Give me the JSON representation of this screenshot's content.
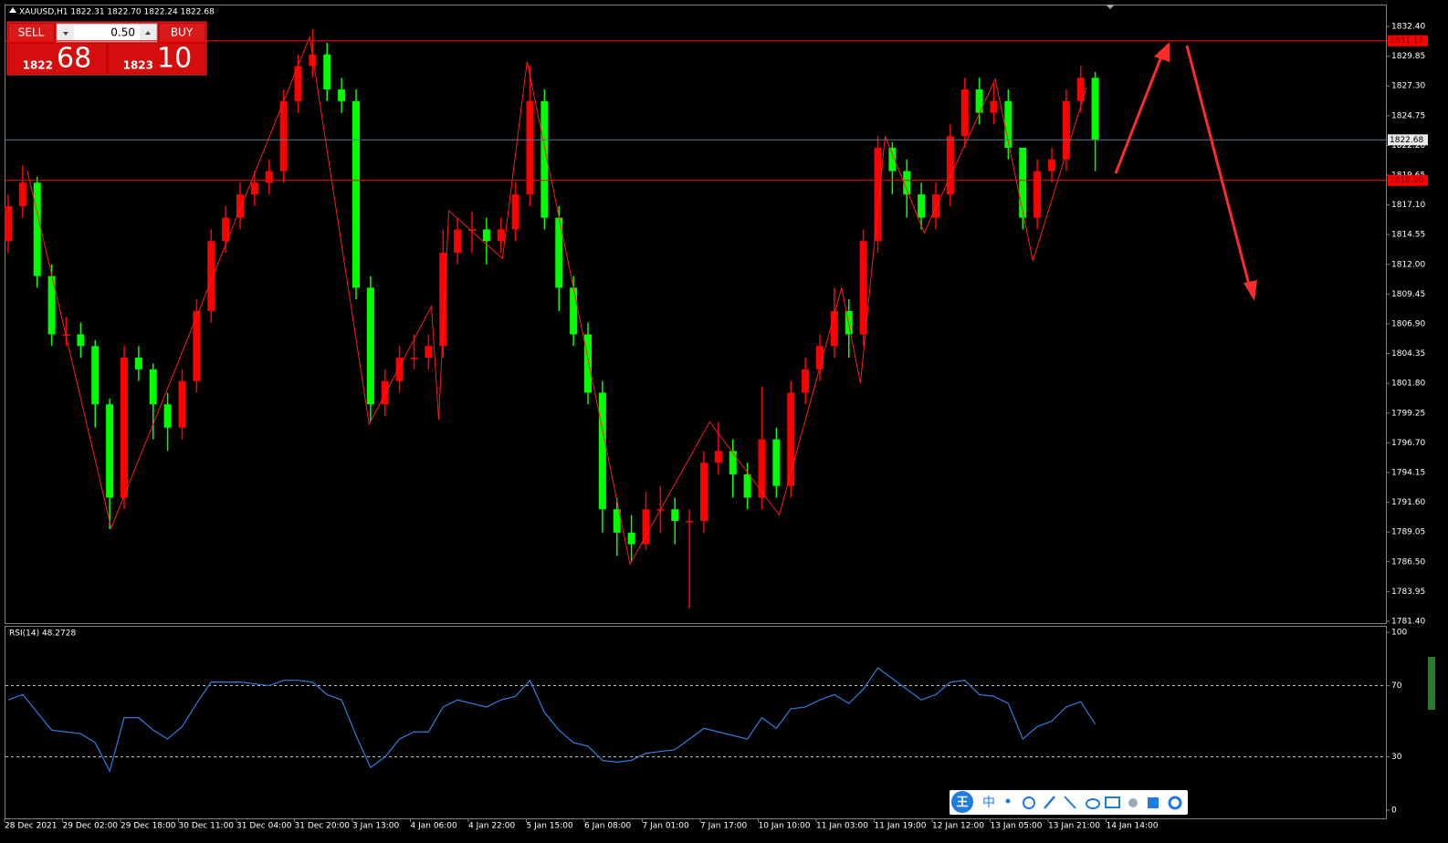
{
  "header": {
    "symbol_info": "XAUUSD,H1  1822.31 1822.70 1822.24 1822.68"
  },
  "trade_panel": {
    "sell": "SELL",
    "buy": "BUY",
    "lot": "0.50",
    "sell_price_main": "1822",
    "sell_price_pips": "68",
    "buy_price_main": "1823",
    "buy_price_pips": "10"
  },
  "chart_data": [
    {
      "type": "candlestick",
      "categories": [
        "28 Dec 2021",
        null,
        null,
        null,
        "29 Dec 02:00",
        null,
        null,
        null,
        "29 Dec 18:00",
        null,
        null,
        null,
        "30 Dec 11:00",
        null,
        null,
        null,
        "31 Dec 04:00",
        null,
        null,
        null,
        "31 Dec 20:00",
        null,
        null,
        null,
        "3 Jan 13:00",
        null,
        null,
        null,
        "4 Jan 06:00",
        null,
        null,
        null,
        "4 Jan 22:00",
        null,
        null,
        null,
        "5 Jan 15:00",
        null,
        null,
        null,
        "6 Jan 08:00",
        null,
        null,
        null,
        "7 Jan 01:00",
        null,
        null,
        null,
        "7 Jan 17:00",
        null,
        null,
        null,
        "10 Jan 10:00",
        null,
        null,
        null,
        "11 Jan 03:00",
        null,
        null,
        null,
        "11 Jan 19:00",
        null,
        null,
        null,
        "12 Jan 12:00",
        null,
        null,
        null,
        "13 Jan 05:00",
        null,
        null,
        null,
        "13 Jan 21:00",
        null,
        null,
        null,
        "14 Jan 14:00"
      ],
      "open": [
        1814,
        1817,
        1819,
        1811,
        1806,
        1806,
        1805,
        1800,
        1792,
        1804,
        1803,
        1800,
        1798,
        1802,
        1808,
        1814,
        1816,
        1818,
        1819,
        1820,
        1826,
        1829,
        1830,
        1827,
        1826,
        1810,
        1800,
        1802,
        1804,
        1804,
        1805,
        1813,
        1815,
        1815,
        1814,
        1815,
        1818,
        1826,
        1816,
        1810,
        1806,
        1801,
        1791,
        1789,
        1788,
        1791,
        1791,
        1790,
        1790,
        1795,
        1796,
        1794,
        1792,
        1797,
        1793,
        1801,
        1803,
        1805,
        1808,
        1806,
        1814,
        1822,
        1820,
        1818,
        1816,
        1818,
        1823,
        1827,
        1825,
        1826,
        1822,
        1816,
        1820,
        1821,
        1826,
        1828,
        null
      ],
      "high": [
        1818,
        1820.5,
        1819.5,
        1812,
        1807.5,
        1807,
        1805.5,
        1800.5,
        1805,
        1805,
        1803.5,
        1801,
        1803,
        1809,
        1815,
        1817,
        1819,
        1820,
        1821,
        1827,
        1830,
        1832.2,
        1831,
        1828,
        1827,
        1811,
        1803,
        1805,
        1806,
        1806,
        1815,
        1816,
        1816.5,
        1816,
        1816,
        1819,
        1829,
        1827,
        1817,
        1811,
        1807,
        1802,
        1792,
        1790.5,
        1792.5,
        1793,
        1792,
        1791,
        1796,
        1798.5,
        1797,
        1795,
        1801.5,
        1798,
        1802,
        1804,
        1806,
        1810,
        1809,
        1815,
        1823,
        1822.5,
        1821,
        1819,
        1819,
        1824,
        1828,
        1828,
        1827.5,
        1827,
        1822,
        1821,
        1822,
        1827,
        1829,
        1828.5,
        null
      ],
      "low": [
        1813,
        1816,
        1810,
        1805,
        1805,
        1804,
        1798,
        1789.3,
        1791,
        1802,
        1797,
        1796,
        1797,
        1801,
        1807,
        1813,
        1815,
        1817,
        1818,
        1819,
        1825,
        1828,
        1826,
        1825,
        1809,
        1798.5,
        1799,
        1801,
        1803,
        1803,
        1804,
        1812,
        1813,
        1812,
        1813,
        1814,
        1817,
        1815,
        1808,
        1805,
        1800,
        1789,
        1787,
        1786.5,
        1787.5,
        1789,
        1788,
        1782.5,
        1789,
        1794,
        1792,
        1791,
        1791,
        1792,
        1792,
        1800,
        1802,
        1804,
        1804,
        1805,
        1813,
        1818,
        1816,
        1815,
        1815,
        1817,
        1822,
        1824,
        1824,
        1821,
        1815,
        1815,
        1819,
        1820,
        1825,
        1820,
        null
      ],
      "close": [
        1817,
        1819,
        1811,
        1806,
        1806,
        1805,
        1800,
        1792,
        1804,
        1803,
        1800,
        1798,
        1802,
        1808,
        1814,
        1816,
        1818,
        1819,
        1820,
        1826,
        1829,
        1830,
        1827,
        1826,
        1810,
        1800,
        1802,
        1804,
        1804,
        1805,
        1813,
        1815,
        1815,
        1814,
        1815,
        1818,
        1826,
        1816,
        1810,
        1806,
        1801,
        1791,
        1789,
        1788,
        1791,
        1791,
        1790,
        1790,
        1795,
        1796,
        1794,
        1792,
        1797,
        1793,
        1801,
        1803,
        1805,
        1808,
        1806,
        1814,
        1822,
        1820,
        1818,
        1816,
        1818,
        1823,
        1827,
        1825,
        1826,
        1822,
        1816,
        1820,
        1821,
        1826,
        1828,
        1822.68,
        null
      ],
      "up_color": "#ff0000",
      "down_color": "#00ff00",
      "ylim": [
        1781.24,
        1834.2
      ],
      "yticks": [
        {
          "value": 1832.4,
          "label": "1832.40"
        },
        {
          "value": 1829.85,
          "label": "1829.85"
        },
        {
          "value": 1827.3,
          "label": "1827.30"
        },
        {
          "value": 1824.75,
          "label": "1824.75"
        },
        {
          "value": 1822.2,
          "label": "1822.20"
        },
        {
          "value": 1819.65,
          "label": "1819.65"
        },
        {
          "value": 1817.1,
          "label": "1817.10"
        },
        {
          "value": 1814.55,
          "label": "1814.55"
        },
        {
          "value": 1812,
          "label": "1812.00"
        },
        {
          "value": 1809.45,
          "label": "1809.45"
        },
        {
          "value": 1806.9,
          "label": "1806.90"
        },
        {
          "value": 1804.35,
          "label": "1804.35"
        },
        {
          "value": 1801.8,
          "label": "1801.80"
        },
        {
          "value": 1799.25,
          "label": "1799.25"
        },
        {
          "value": 1796.7,
          "label": "1796.70"
        },
        {
          "value": 1794.15,
          "label": "1794.15"
        },
        {
          "value": 1791.6,
          "label": "1791.60"
        },
        {
          "value": 1789.05,
          "label": "1789.05"
        },
        {
          "value": 1786.5,
          "label": "1786.50"
        },
        {
          "value": 1783.95,
          "label": "1783.95"
        },
        {
          "value": 1781.4,
          "label": "1781.40"
        }
      ],
      "levels": [
        {
          "value": 1831.17,
          "label": "1831.17",
          "color": "#ff0000"
        },
        {
          "value": 1822.68,
          "label": "1822.68",
          "color": "#5a7896"
        },
        {
          "value": 1819.2,
          "label": "1819.20",
          "color": "#ff0000"
        }
      ],
      "zigzag": {
        "color": "#ff1a1a",
        "x": [
          1.3,
          7.1,
          20.8,
          24.9,
          29.2,
          29.7,
          30.4,
          34.1,
          35.8,
          42.9,
          48.4,
          53.2,
          57.5,
          58.8,
          60.5,
          63.2,
          68.1,
          70.7,
          74.4
        ],
        "values": [
          1820.1,
          1789.4,
          1831.5,
          1798.3,
          1808.4,
          1798.7,
          1816.6,
          1812.5,
          1829.4,
          1786.3,
          1798.5,
          1790.5,
          1810.0,
          1801.8,
          1823.0,
          1814.7,
          1827.9,
          1812.3,
          1827.2
        ]
      }
    },
    {
      "type": "line",
      "title": "RSI(14) 48.2728",
      "color": "#2d7fe0",
      "values": [
        62,
        65,
        55,
        45,
        44,
        43,
        38,
        22,
        52,
        52,
        45,
        40,
        47,
        60,
        72,
        72,
        72,
        71,
        70,
        73,
        73,
        72,
        65,
        62,
        42,
        24,
        30,
        40,
        44,
        44,
        58,
        62,
        60,
        58,
        62,
        64,
        73,
        55,
        45,
        38,
        36,
        28,
        27,
        28,
        32,
        33,
        34,
        40,
        46,
        44,
        42,
        40,
        52,
        46,
        57,
        58,
        62,
        65,
        60,
        68,
        80,
        74,
        68,
        62,
        65,
        72,
        73,
        65,
        64,
        60,
        40,
        47,
        50,
        58,
        61,
        48.27,
        null
      ],
      "ylim": [
        -4.6,
        103.1
      ],
      "yticks": [
        0,
        30,
        70,
        100
      ],
      "levels": [
        30,
        70
      ]
    }
  ],
  "toolbar": {
    "ime_label": "中"
  }
}
